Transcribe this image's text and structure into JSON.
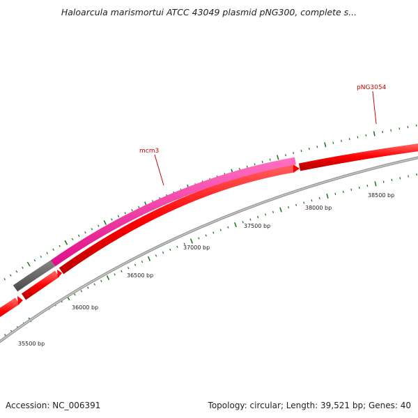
{
  "title": "Haloarcula marismortui ATCC 43049 plasmid pNG300, complete s...",
  "footer": {
    "accession": "Accession: NC_006391",
    "summary": "Topology: circular; Length: 39,521 bp; Genes: 40"
  },
  "map": {
    "gene_labels": [
      "mcm3",
      "pNG3054"
    ],
    "bp_labels": [
      "35500 bp",
      "36000 bp",
      "36500 bp",
      "37000 bp",
      "37500 bp",
      "38000 bp",
      "38500 bp"
    ],
    "colors": {
      "tick": "#1f7a1f",
      "backbone": "#8a8a8a",
      "cds": "#ff0000",
      "mcm3": "#ff1493",
      "other_feature": "#606060",
      "gene_label": "#cc0000"
    }
  }
}
